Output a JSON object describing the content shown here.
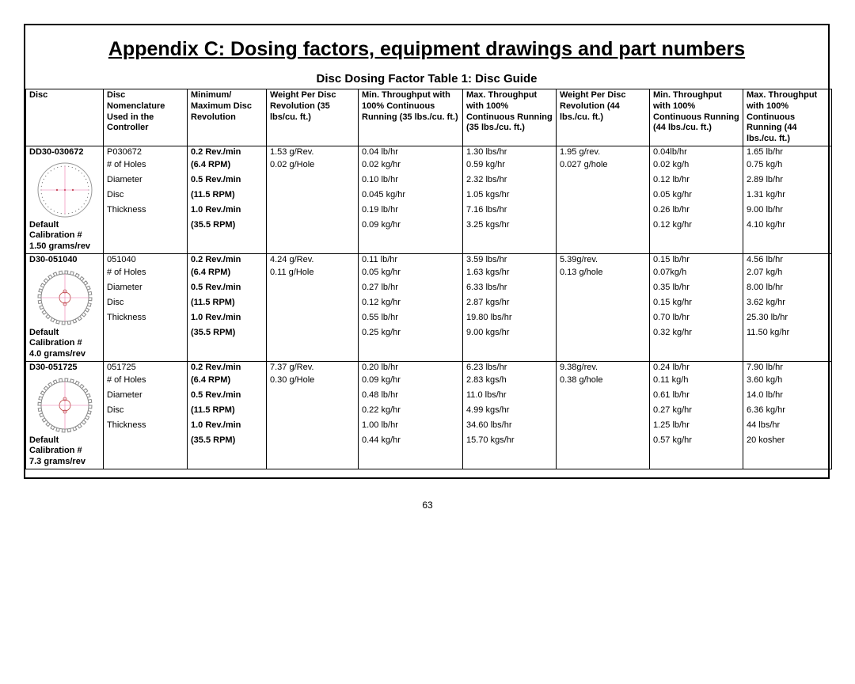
{
  "title": "Appendix C:  Dosing factors, equipment drawings and part numbers",
  "subtitle": "Disc Dosing Factor Table 1: Disc Guide",
  "pageNumber": "63",
  "columns": [
    "Disc",
    "Disc Nomenclature Used in the Controller",
    "Minimum/ Maximum Disc Revolution",
    "Weight Per Disc Revolution (35 lbs/cu. ft.)",
    "Min. Throughput with 100% Continuous Running (35 lbs./cu. ft.)",
    "Max. Throughput with 100% Continuous Running (35 lbs./cu. ft.)",
    "Weight Per Disc Revolution (44 lbs./cu. ft.)",
    "Min. Throughput with 100% Continuous Running (44 lbs./cu. ft.)",
    "Max. Throughput with 100% Continuous Running (44 lbs./cu. ft.)"
  ],
  "sections": [
    {
      "discId": "DD30-030672",
      "nomCode": "P030672",
      "nomLines": [
        "# of Holes",
        "Diameter",
        "Disc",
        "Thickness"
      ],
      "calibLabel": "Default Calibration #",
      "calibValue": "1.50 grams/rev",
      "discStyle": "smooth",
      "revBlocks": [
        {
          "label": "0.2 Rev./min",
          "sub": "(6.4 RPM)"
        },
        {
          "label": "0.5 Rev./min",
          "sub": "(11.5 RPM)"
        },
        {
          "label": "1.0 Rev./min",
          "sub": "(35.5 RPM)"
        }
      ],
      "wpd35": [
        "1.53 g/Rev.",
        "0.02 g/Hole"
      ],
      "min35": [
        "0.04 lb/hr",
        "0.02 kg/hr",
        "0.10 lb/hr",
        "0.045 kg/hr",
        "0.19 lb/hr",
        "0.09 kg/hr"
      ],
      "max35": [
        "1.30 lbs/hr",
        "0.59 kg/hr",
        "2.32 lbs/hr",
        "1.05 kgs/hr",
        "7.16 lbs/hr",
        "3.25 kgs/hr"
      ],
      "wpd44": [
        "1.95 g/rev.",
        "0.027 g/hole"
      ],
      "min44": [
        "0.04lb/hr",
        "0.02 kg/h",
        "0.12 lb/hr",
        "0.05 kg/hr",
        "0.26 lb/hr",
        "0.12 kg/hr"
      ],
      "max44": [
        "1.65 lb/hr",
        "0.75 kg/h",
        "2.89 lb/hr",
        "1.31 kg/hr",
        "9.00 lb/hr",
        "4.10 kg/hr"
      ]
    },
    {
      "discId": "D30-051040",
      "nomCode": "051040",
      "nomLines": [
        "# of Holes",
        "Diameter",
        "Disc",
        "Thickness"
      ],
      "calibLabel": "Default Calibration #",
      "calibValue": "4.0 grams/rev",
      "discStyle": "gear",
      "revBlocks": [
        {
          "label": "0.2 Rev./min",
          "sub": "(6.4 RPM)"
        },
        {
          "label": "0.5 Rev./min",
          "sub": "(11.5 RPM)"
        },
        {
          "label": "1.0 Rev./min",
          "sub": "(35.5 RPM)"
        }
      ],
      "wpd35": [
        "4.24 g/Rev.",
        "0.11 g/Hole"
      ],
      "min35": [
        "0.11 lb/hr",
        "0.05 kg/hr",
        "0.27 lb/hr",
        "0.12 kg/hr",
        "0.55 lb/hr",
        "0.25 kg/hr"
      ],
      "max35": [
        "3.59 lbs/hr",
        "1.63 kgs/hr",
        "6.33 lbs/hr",
        "2.87 kgs/hr",
        "19.80 lbs/hr",
        "9.00 kgs/hr"
      ],
      "wpd44": [
        "5.39g/rev.",
        "0.13 g/hole"
      ],
      "min44": [
        "0.15 lb/hr",
        "0.07kg/h",
        "0.35 lb/hr",
        "0.15 kg/hr",
        "0.70 lb/hr",
        "0.32 kg/hr"
      ],
      "max44": [
        "4.56 lb/hr",
        "2.07 kg/h",
        "8.00 lb/hr",
        "3.62 kg/hr",
        "25.30 lb/hr",
        "11.50 kg/hr"
      ]
    },
    {
      "discId": "D30-051725",
      "nomCode": "051725",
      "nomLines": [
        "# of Holes",
        "Diameter",
        "Disc",
        "Thickness"
      ],
      "calibLabel": "Default Calibration #",
      "calibValue": "7.3 grams/rev",
      "discStyle": "gear",
      "revBlocks": [
        {
          "label": "0.2 Rev./min",
          "sub": "(6.4 RPM)"
        },
        {
          "label": "0.5 Rev./min",
          "sub": "(11.5 RPM)"
        },
        {
          "label": "1.0 Rev./min",
          "sub": "(35.5 RPM)"
        }
      ],
      "wpd35": [
        "7.37 g/Rev.",
        "0.30 g/Hole"
      ],
      "min35": [
        "0.20 lb/hr",
        "0.09 kg/hr",
        "0.48 lb/hr",
        "0.22 kg/hr",
        "1.00 lb/hr",
        "0.44 kg/hr"
      ],
      "max35": [
        "6.23 lbs/hr",
        "2.83 kgs/h",
        "11.0 lbs/hr",
        "4.99 kgs/hr",
        "34.60 lbs/hr",
        "15.70 kgs/hr"
      ],
      "wpd44": [
        "9.38g/rev.",
        "0.38 g/hole"
      ],
      "min44": [
        "0.24 lb/hr",
        "0.11 kg/h",
        "0.61 lb/hr",
        "0.27 kg/hr",
        "1.25 lb/hr",
        "0.57 kg/hr"
      ],
      "max44": [
        "7.90 lb/hr",
        "3.60 kg/h",
        "14.0 lb/hr",
        "6.36 kg/hr",
        "44 lbs/hr",
        "20 kosher"
      ]
    }
  ]
}
